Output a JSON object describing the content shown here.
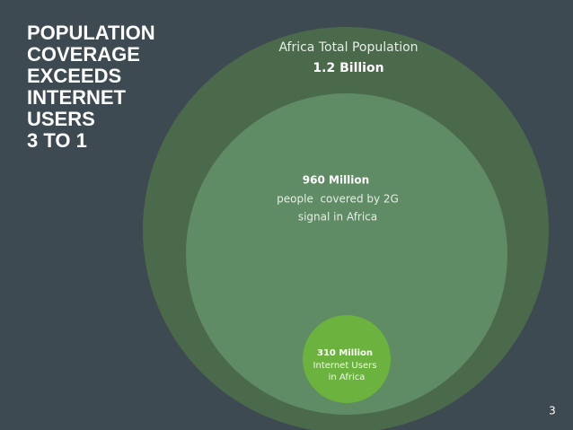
{
  "title": [
    "POPULATION",
    "COVERAGE",
    "EXCEEDS",
    "INTERNET",
    "USERS",
    "3 TO 1"
  ],
  "circles": [
    {
      "label": "Africa Total Population",
      "value": "1.2 Billion"
    },
    {
      "value": "960 Million",
      "lines": [
        "people  covered by 2G",
        "signal in Africa"
      ]
    },
    {
      "value": "310 Million",
      "lines": [
        "Internet Users",
        "in Africa"
      ]
    }
  ],
  "page_number": 3
}
